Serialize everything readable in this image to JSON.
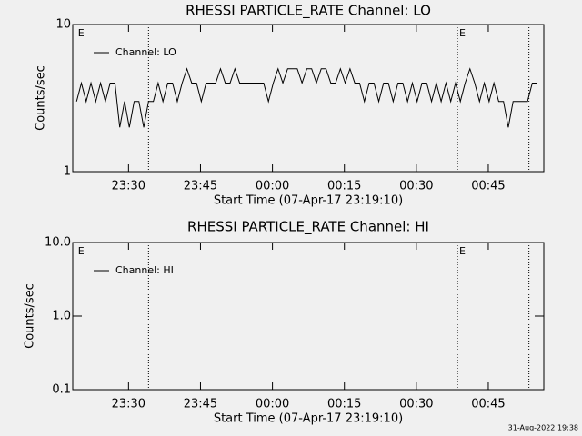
{
  "chart_data": [
    {
      "type": "line",
      "title": "RHESSI PARTICLE_RATE Channel: LO",
      "xlabel": "Start Time (07-Apr-17 23:19:10)",
      "ylabel": "Counts/sec",
      "x": [
        0,
        1,
        2,
        3,
        4,
        5,
        6,
        7,
        8,
        9,
        10,
        11,
        12,
        13,
        14,
        15,
        16,
        17,
        18,
        19,
        20,
        21,
        22,
        23,
        24,
        25,
        26,
        27,
        28,
        29,
        30,
        31,
        32,
        33,
        34,
        35,
        36,
        37,
        38,
        39,
        40,
        41,
        42,
        43,
        44,
        45,
        46,
        47,
        48,
        49,
        50,
        51,
        52,
        53,
        54,
        55,
        56,
        57,
        58,
        59,
        60,
        61,
        62,
        63,
        64,
        65,
        66,
        67,
        68,
        69,
        70,
        71,
        72,
        73,
        74,
        75,
        76,
        77,
        78,
        79,
        80,
        81,
        82,
        83,
        84,
        85,
        86,
        87,
        88,
        89,
        90,
        91,
        92,
        93,
        94,
        95,
        96
      ],
      "series": [
        {
          "name": "Channel: LO",
          "color": "#000000",
          "values": [
            3,
            4,
            3,
            4,
            3,
            4,
            3,
            4,
            4,
            2,
            3,
            2,
            3,
            3,
            2,
            3,
            3,
            4,
            3,
            4,
            4,
            3,
            4,
            5,
            4,
            4,
            3,
            4,
            4,
            4,
            5,
            4,
            4,
            5,
            4,
            4,
            4,
            4,
            4,
            4,
            3,
            4,
            5,
            4,
            5,
            5,
            5,
            4,
            5,
            5,
            4,
            5,
            5,
            4,
            4,
            5,
            4,
            5,
            4,
            4,
            3,
            4,
            4,
            3,
            4,
            4,
            3,
            4,
            4,
            3,
            4,
            3,
            4,
            4,
            3,
            4,
            3,
            4,
            3,
            4,
            3,
            4,
            5,
            4,
            3,
            4,
            3,
            4,
            3,
            3,
            2,
            3,
            3,
            3,
            3,
            4,
            4
          ]
        }
      ],
      "xlim": [
        -0.8,
        97.4
      ],
      "xticks": [
        {
          "value": 10.83,
          "label": "23:30"
        },
        {
          "value": 25.83,
          "label": "23:45"
        },
        {
          "value": 40.83,
          "label": "00:00"
        },
        {
          "value": 55.83,
          "label": "00:15"
        },
        {
          "value": 70.83,
          "label": "00:30"
        },
        {
          "value": 85.83,
          "label": "00:45"
        }
      ],
      "ylim": [
        1,
        10
      ],
      "yticks": [
        1,
        10
      ],
      "log_y": true,
      "legend": "upper left",
      "event_lines": [
        15.0,
        79.4,
        94.3
      ],
      "annotations": [
        {
          "text": "E",
          "x": -0.1
        },
        {
          "text": "E",
          "x": 79.4
        }
      ]
    },
    {
      "type": "line",
      "title": "RHESSI PARTICLE_RATE Channel: HI",
      "xlabel": "Start Time (07-Apr-17 23:19:10)",
      "ylabel": "Counts/sec",
      "x": [],
      "series": [
        {
          "name": "Channel: HI",
          "color": "#000000",
          "values": []
        }
      ],
      "xlim": [
        -0.8,
        97.4
      ],
      "xticks": [
        {
          "value": 10.83,
          "label": "23:30"
        },
        {
          "value": 25.83,
          "label": "23:45"
        },
        {
          "value": 40.83,
          "label": "00:00"
        },
        {
          "value": 55.83,
          "label": "00:15"
        },
        {
          "value": 70.83,
          "label": "00:30"
        },
        {
          "value": 85.83,
          "label": "00:45"
        }
      ],
      "ylim": [
        0.1,
        10
      ],
      "yticks": [
        {
          "value": 0.1,
          "label": "0.1"
        },
        {
          "value": 1,
          "label": "1.0"
        },
        {
          "value": 10,
          "label": "10.0"
        }
      ],
      "log_y": true,
      "legend": "upper left",
      "event_lines": [
        15.0,
        79.4,
        94.3
      ],
      "annotations": [
        {
          "text": "E",
          "x": -0.1
        },
        {
          "text": "E",
          "x": 79.4
        }
      ]
    }
  ],
  "timestamp": "31-Aug-2022 19:38"
}
